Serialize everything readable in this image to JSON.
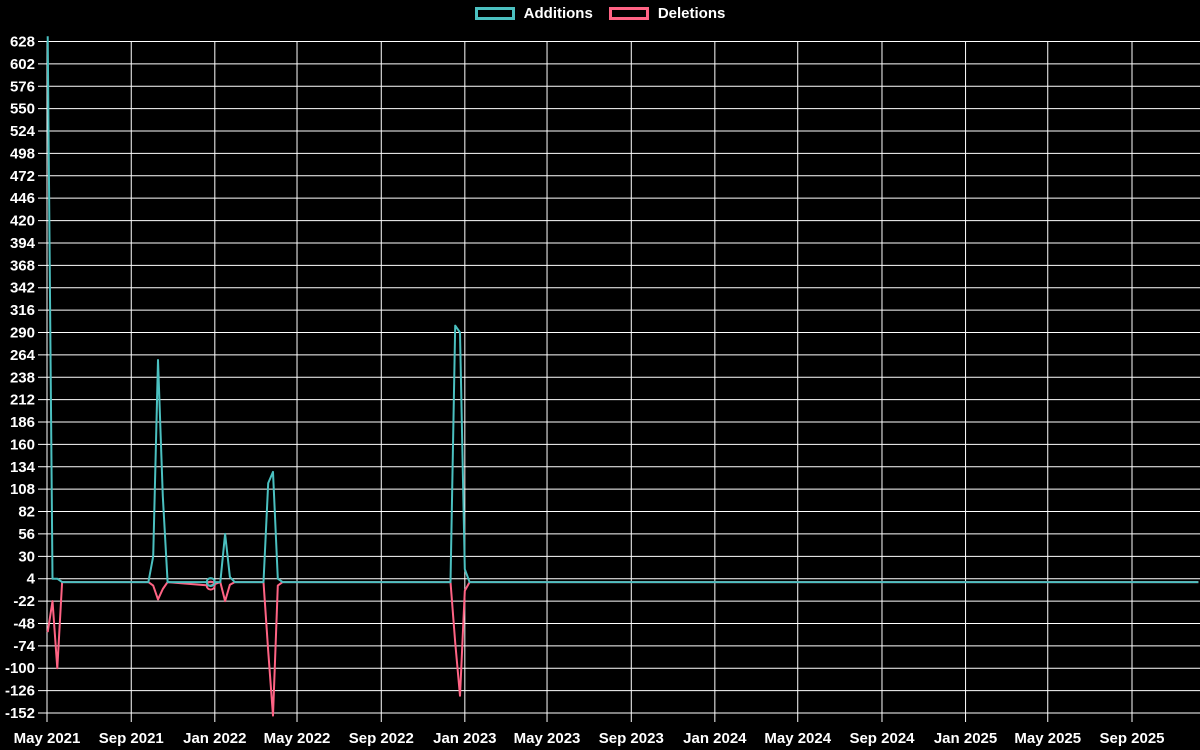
{
  "chart_data": {
    "type": "line",
    "title": "",
    "legend_position": "top",
    "background": "#000000",
    "grid_color": "#ffffff",
    "text_color": "#ffffff",
    "grid": true,
    "x_ticks": [
      "May 2021",
      "Sep 2021",
      "Jan 2022",
      "May 2022",
      "Sep 2022",
      "Jan 2023",
      "May 2023",
      "Sep 2023",
      "Jan 2024",
      "May 2024",
      "Sep 2024",
      "Jan 2025",
      "May 2025",
      "Sep 2025"
    ],
    "y_ticks": [
      628,
      602,
      576,
      550,
      524,
      498,
      472,
      446,
      420,
      394,
      368,
      342,
      316,
      290,
      264,
      238,
      212,
      186,
      160,
      134,
      108,
      82,
      56,
      30,
      4,
      -22,
      -48,
      -74,
      -100,
      -126,
      -152
    ],
    "ylim": [
      -152,
      628
    ],
    "series": [
      {
        "name": "Additions",
        "color": "#4bc0c0"
      },
      {
        "name": "Deletions",
        "color": "#ff6384"
      }
    ],
    "weekly_points": [
      {
        "date": "2021-05-02",
        "additions": 634,
        "deletions": -58
      },
      {
        "date": "2021-05-09",
        "additions": 4,
        "deletions": -22
      },
      {
        "date": "2021-05-16",
        "additions": 4,
        "deletions": -100
      },
      {
        "date": "2021-05-23",
        "additions": 0,
        "deletions": 0
      },
      {
        "date": "2021-09-26",
        "additions": 0,
        "deletions": 0
      },
      {
        "date": "2021-10-03",
        "additions": 30,
        "deletions": -4
      },
      {
        "date": "2021-10-10",
        "additions": 258,
        "deletions": -20
      },
      {
        "date": "2021-10-17",
        "additions": 100,
        "deletions": -8
      },
      {
        "date": "2021-10-24",
        "additions": 0,
        "deletions": 0
      },
      {
        "date": "2021-12-26",
        "additions": 0,
        "deletions": -4,
        "marker": true
      },
      {
        "date": "2022-01-09",
        "additions": 0,
        "deletions": 0
      },
      {
        "date": "2022-01-16",
        "additions": 56,
        "deletions": -22
      },
      {
        "date": "2022-01-23",
        "additions": 6,
        "deletions": -3
      },
      {
        "date": "2022-01-30",
        "additions": 0,
        "deletions": 0
      },
      {
        "date": "2022-03-13",
        "additions": 0,
        "deletions": 0
      },
      {
        "date": "2022-03-20",
        "additions": 115,
        "deletions": -80
      },
      {
        "date": "2022-03-27",
        "additions": 128,
        "deletions": -155
      },
      {
        "date": "2022-04-03",
        "additions": 4,
        "deletions": -4
      },
      {
        "date": "2022-04-10",
        "additions": 0,
        "deletions": 0
      },
      {
        "date": "2022-12-11",
        "additions": 0,
        "deletions": 0
      },
      {
        "date": "2022-12-18",
        "additions": 298,
        "deletions": -70
      },
      {
        "date": "2022-12-25",
        "additions": 290,
        "deletions": -132
      },
      {
        "date": "2023-01-01",
        "additions": 15,
        "deletions": -10
      },
      {
        "date": "2023-01-08",
        "additions": 0,
        "deletions": 0
      },
      {
        "date": "2025-12-07",
        "additions": 0,
        "deletions": 0
      }
    ]
  }
}
